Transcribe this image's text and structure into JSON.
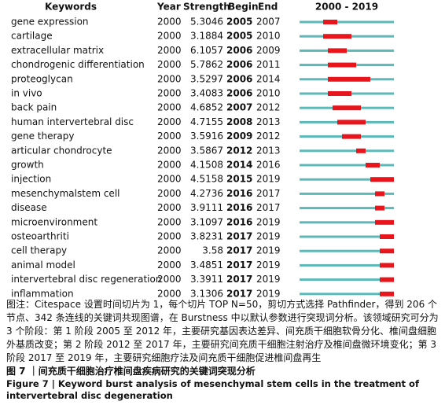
{
  "header": {
    "keywords": "Keywords",
    "year": "Year",
    "strength": "Strength",
    "begin": "Begin",
    "end": "End",
    "timeline": {
      "label": "2000 - 2019",
      "start": 2000,
      "end": 2019
    }
  },
  "table": {
    "rows": [
      [
        "gene expression",
        2000,
        5.3046,
        2005,
        2007
      ],
      [
        "cartilage",
        2000,
        3.1884,
        2005,
        2010
      ],
      [
        "extracellular matrix",
        2000,
        6.1057,
        2006,
        2009
      ],
      [
        "chondrogenic differentiation",
        2000,
        5.7862,
        2006,
        2011
      ],
      [
        "proteoglycan",
        2000,
        3.5297,
        2006,
        2014
      ],
      [
        "in vivo",
        2000,
        3.4083,
        2006,
        2010
      ],
      [
        "back pain",
        2000,
        4.6852,
        2007,
        2012
      ],
      [
        "human intervertebral disc",
        2000,
        4.7155,
        2008,
        2013
      ],
      [
        "gene therapy",
        2000,
        3.5916,
        2009,
        2012
      ],
      [
        "articular chondrocyte",
        2000,
        3.5867,
        2012,
        2013
      ],
      [
        "growth",
        2000,
        4.1508,
        2014,
        2016
      ],
      [
        "injection",
        2000,
        4.5158,
        2015,
        2019
      ],
      [
        "mesenchymalstem cell",
        2000,
        4.2736,
        2016,
        2017
      ],
      [
        "disease",
        2000,
        3.9111,
        2016,
        2017
      ],
      [
        "microenvironment",
        2000,
        3.1097,
        2016,
        2019
      ],
      [
        "osteoarthriti",
        2000,
        3.8231,
        2017,
        2019
      ],
      [
        "cell therapy",
        2000,
        3.58,
        2017,
        2019
      ],
      [
        "animal model",
        2000,
        3.4851,
        2017,
        2019
      ],
      [
        "intervertebral disc regeneration",
        2000,
        3.3911,
        2017,
        2019
      ],
      [
        "inflammation",
        2000,
        3.1306,
        2017,
        2019
      ]
    ]
  },
  "note": "图注：Citespace 设置时间切片为 1，每个切片 TOP N=50，剪切方式选择 Pathfinder，得到 206 个节点、342 条连线的关键词共现图谱，在 Burstness 中以默认参数进行突现词分析。该领域研究可分为 3 个阶段：第 1 阶段 2005 至 2012 年，主要研究基因表达差异、间充质干细胞软骨分化、椎间盘细胞外基质改变；第 2 阶段 2012 至 2017 年，主要研究间充质干细胞注射治疗及椎间盘微环境变化；第 3 阶段 2017 至 2019 年，主要研究细胞疗法及间充质干细胞促进椎间盘再生",
  "caption_cn": "图 7 ｜间充质干细胞治疗椎间盘疾病研究的关键词突现分析",
  "caption_en": "Figure 7 | Keyword burst analysis of mesenchymal stem cells in the treatment of intervertebral disc degeneration"
}
